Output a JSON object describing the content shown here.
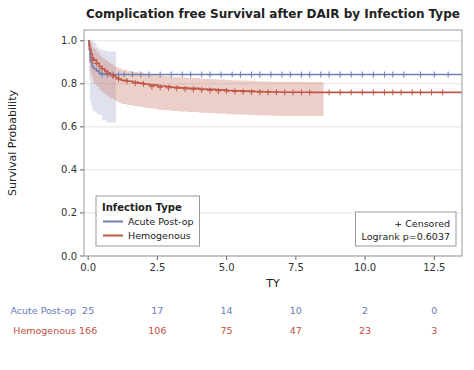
{
  "chart_data": {
    "type": "kaplan_meier",
    "title": "Complication free Survival after DAIR by Infection Type",
    "x_label": "TY",
    "y_label": "Survival Probability",
    "xlim": [
      -0.15,
      13.5
    ],
    "ylim": [
      0.0,
      1.05
    ],
    "xticks": [
      {
        "value": 0.0,
        "label": "0.0"
      },
      2.5,
      {
        "value": 5.0,
        "label": "5.0"
      },
      7.5,
      {
        "value": 10.0,
        "label": "10.0"
      },
      12.5
    ],
    "yticks": [
      {
        "value": 0.0,
        "label": "0.0"
      },
      0.2,
      0.4,
      0.6,
      0.8,
      {
        "value": 1.0,
        "label": "1.0"
      }
    ],
    "grid": "y",
    "legend": "lower left",
    "legend_title": "Infection Type",
    "annotations": [
      "+ Censored",
      "Logrank p=0.6037"
    ],
    "at_risk_x": [
      0.0,
      2.5,
      5.0,
      7.5,
      10.0,
      12.5
    ],
    "series": [
      {
        "name": "Acute Post-op",
        "color": "#7080b0",
        "fill_color": "#aab0cc",
        "label_color": "#6b7ab5",
        "x": [
          0.0,
          0.04,
          0.07,
          0.1,
          0.15,
          0.2,
          0.3,
          0.4,
          0.5,
          0.65,
          0.8,
          1.0,
          1.5,
          2.0,
          13.5
        ],
        "values": [
          1.0,
          0.96,
          0.92,
          0.9,
          0.88,
          0.87,
          0.86,
          0.85,
          0.845,
          0.843,
          0.843,
          0.843,
          0.843,
          0.843,
          0.843
        ],
        "ci_upper": [
          1.0,
          1.0,
          1.0,
          1.0,
          1.0,
          0.99,
          0.97,
          0.96,
          0.955,
          0.95,
          0.95,
          0.95,
          0.95,
          0.95,
          0.95
        ],
        "ci_lower": [
          1.0,
          0.82,
          0.72,
          0.7,
          0.68,
          0.67,
          0.66,
          0.655,
          0.63,
          0.62,
          0.62,
          0.62,
          0.62,
          0.62,
          0.62
        ],
        "ci_end_x": 1.0,
        "censor_x": [
          0.5,
          0.7,
          0.9,
          1.1,
          1.3,
          1.6,
          1.9,
          2.2,
          2.6,
          3.0,
          3.4,
          3.7,
          4.1,
          4.4,
          4.8,
          5.2,
          5.5,
          5.9,
          6.2,
          6.6,
          7.0,
          7.3,
          7.7,
          8.0,
          8.4,
          8.7,
          9.1,
          9.5,
          9.9,
          10.3,
          10.7,
          11.0,
          11.4,
          12.0,
          12.5,
          13.0
        ],
        "censor_y": [
          0.843,
          0.843,
          0.843,
          0.843,
          0.843,
          0.843,
          0.843,
          0.843,
          0.843,
          0.843,
          0.843,
          0.843,
          0.843,
          0.843,
          0.843,
          0.843,
          0.843,
          0.843,
          0.843,
          0.843,
          0.843,
          0.843,
          0.843,
          0.843,
          0.843,
          0.843,
          0.843,
          0.843,
          0.843,
          0.843,
          0.843,
          0.843,
          0.843,
          0.843,
          0.843,
          0.843
        ],
        "at_risk": [
          25,
          17,
          14,
          10,
          2,
          0
        ]
      },
      {
        "name": "Hemogenous",
        "color": "#c05848",
        "fill_color": "#cc8070",
        "label_color": "#c05040",
        "x": [
          0.0,
          0.03,
          0.06,
          0.1,
          0.15,
          0.2,
          0.3,
          0.4,
          0.5,
          0.6,
          0.7,
          0.8,
          0.9,
          1.0,
          1.1,
          1.2,
          1.4,
          1.6,
          1.8,
          2.0,
          2.2,
          2.5,
          2.8,
          3.0,
          3.3,
          3.6,
          4.0,
          4.3,
          4.6,
          5.0,
          5.3,
          5.6,
          6.0,
          6.3,
          6.6,
          7.0,
          7.3,
          7.6,
          8.0,
          8.3,
          8.5,
          8.8,
          13.5
        ],
        "values": [
          1.0,
          0.98,
          0.96,
          0.94,
          0.92,
          0.91,
          0.895,
          0.88,
          0.87,
          0.86,
          0.85,
          0.843,
          0.836,
          0.828,
          0.822,
          0.816,
          0.812,
          0.807,
          0.803,
          0.799,
          0.795,
          0.79,
          0.787,
          0.784,
          0.781,
          0.779,
          0.776,
          0.774,
          0.772,
          0.769,
          0.767,
          0.766,
          0.764,
          0.763,
          0.762,
          0.761,
          0.761,
          0.761,
          0.76,
          0.76,
          0.76,
          0.76,
          0.76
        ],
        "ci_upper": [
          1.0,
          1.0,
          1.0,
          0.99,
          0.97,
          0.96,
          0.945,
          0.93,
          0.92,
          0.91,
          0.9,
          0.892,
          0.885,
          0.877,
          0.871,
          0.865,
          0.86,
          0.855,
          0.851,
          0.847,
          0.843,
          0.838,
          0.835,
          0.832,
          0.829,
          0.827,
          0.824,
          0.822,
          0.82,
          0.817,
          0.815,
          0.814,
          0.812,
          0.811,
          0.81,
          0.809,
          0.809,
          0.809,
          0.808,
          0.808,
          0.808,
          0.808,
          0.808
        ],
        "ci_lower": [
          1.0,
          0.9,
          0.86,
          0.84,
          0.82,
          0.8,
          0.785,
          0.77,
          0.76,
          0.75,
          0.74,
          0.733,
          0.726,
          0.718,
          0.712,
          0.706,
          0.702,
          0.697,
          0.693,
          0.689,
          0.685,
          0.68,
          0.677,
          0.674,
          0.671,
          0.669,
          0.666,
          0.664,
          0.662,
          0.659,
          0.657,
          0.656,
          0.654,
          0.653,
          0.652,
          0.651,
          0.651,
          0.651,
          0.65,
          0.65,
          0.65,
          0.65,
          0.65
        ],
        "ci_end_x": 8.5,
        "censor_x": [
          0.15,
          0.3,
          0.5,
          0.7,
          0.9,
          1.1,
          1.4,
          1.7,
          2.0,
          2.3,
          2.6,
          2.9,
          3.2,
          3.5,
          3.8,
          4.1,
          4.4,
          4.7,
          5.0,
          5.3,
          5.6,
          5.9,
          6.2,
          6.5,
          6.8,
          7.1,
          7.4,
          7.7,
          8.0,
          8.7,
          9.1,
          9.5,
          9.9,
          10.3,
          10.7,
          11.0,
          11.3,
          11.7,
          12.0,
          12.4,
          12.8
        ],
        "censor_y": [
          0.91,
          0.895,
          0.87,
          0.85,
          0.836,
          0.822,
          0.812,
          0.803,
          0.799,
          0.787,
          0.784,
          0.781,
          0.779,
          0.776,
          0.774,
          0.772,
          0.769,
          0.767,
          0.766,
          0.764,
          0.763,
          0.762,
          0.761,
          0.761,
          0.761,
          0.76,
          0.76,
          0.76,
          0.76,
          0.76,
          0.76,
          0.76,
          0.76,
          0.76,
          0.76,
          0.76,
          0.76,
          0.76,
          0.76,
          0.76,
          0.76
        ],
        "at_risk": [
          166,
          106,
          75,
          47,
          23,
          3
        ]
      }
    ]
  }
}
